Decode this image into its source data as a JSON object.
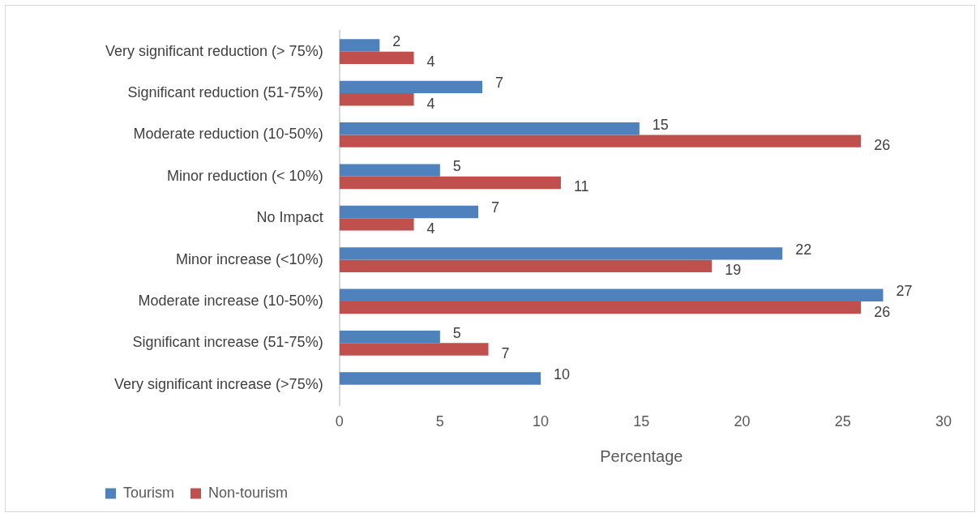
{
  "chart_data": {
    "type": "bar",
    "orientation": "horizontal",
    "xlabel": "Percentage",
    "categories": [
      "Very significant reduction (> 75%)",
      "Significant reduction (51-75%)",
      "Moderate reduction (10-50%)",
      "Minor reduction (< 10%)",
      "No Impact",
      "Minor increase (<10%)",
      "Moderate increase (10-50%)",
      "Significant increase (51-75%)",
      "Very significant increase (>75%)"
    ],
    "series": [
      {
        "name": "Tourism",
        "color": "#4f81bd",
        "values": [
          2,
          7.1,
          14.9,
          5,
          6.9,
          22,
          27,
          5,
          10
        ],
        "value_labels": [
          "2",
          "7",
          "15",
          "5",
          "7",
          "22",
          "27",
          "5",
          "10"
        ]
      },
      {
        "name": "Non-tourism",
        "color": "#c0504d",
        "values": [
          3.7,
          3.7,
          25.9,
          11,
          3.7,
          18.5,
          25.9,
          7.4,
          null
        ],
        "value_labels": [
          "4",
          "4",
          "26",
          "11",
          "4",
          "19",
          "26",
          "7",
          null
        ]
      }
    ],
    "xlim": [
      0,
      30
    ],
    "xticks": [
      0,
      5,
      10,
      15,
      20,
      25,
      30
    ],
    "grid": false,
    "legend": "bottom"
  }
}
